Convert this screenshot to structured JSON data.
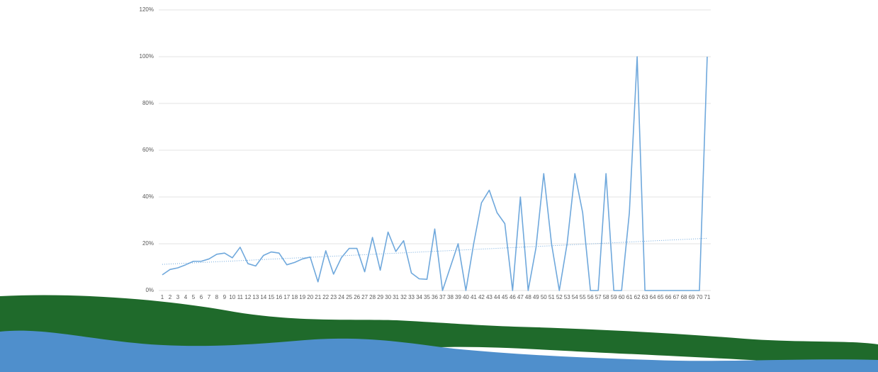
{
  "chart_data": {
    "type": "line",
    "categories": [
      "1",
      "2",
      "3",
      "4",
      "5",
      "6",
      "7",
      "8",
      "9",
      "10",
      "11",
      "12",
      "13",
      "14",
      "15",
      "16",
      "17",
      "18",
      "19",
      "20",
      "21",
      "22",
      "23",
      "24",
      "25",
      "26",
      "27",
      "28",
      "29",
      "30",
      "31",
      "32",
      "33",
      "34",
      "35",
      "36",
      "37",
      "38",
      "39",
      "40",
      "41",
      "42",
      "43",
      "44",
      "45",
      "46",
      "47",
      "48",
      "49",
      "50",
      "51",
      "52",
      "53",
      "54",
      "55",
      "56",
      "57",
      "58",
      "59",
      "60",
      "61",
      "62",
      "63",
      "64",
      "65",
      "66",
      "67",
      "68",
      "69",
      "70",
      "71"
    ],
    "series": [
      {
        "color": "#6fa8dc",
        "values": [
          6.7,
          9,
          9.7,
          11,
          12.5,
          12.5,
          13.5,
          15.5,
          16,
          14,
          18.5,
          11.5,
          10.5,
          15,
          16.5,
          16,
          11,
          12,
          13.5,
          14.3,
          3.7,
          17,
          7,
          14,
          18,
          18,
          8,
          22.7,
          8.7,
          25,
          16.7,
          21.3,
          7.5,
          5,
          4.8,
          26.3,
          0,
          10,
          20,
          0,
          20,
          37.5,
          42.9,
          33.3,
          28.6,
          0,
          40,
          0,
          18.2,
          50,
          20,
          0,
          20,
          50,
          33.3,
          0,
          0,
          50,
          0,
          0,
          33.3,
          100,
          0,
          0,
          0,
          0,
          0,
          0,
          0,
          0,
          100
        ]
      }
    ],
    "trendline": true,
    "ylim": [
      0,
      120
    ],
    "yticks": [
      {
        "value": 0,
        "label": "0%"
      },
      {
        "value": 20,
        "label": "20%"
      },
      {
        "value": 40,
        "label": "40%"
      },
      {
        "value": 60,
        "label": "60%"
      },
      {
        "value": 80,
        "label": "80%"
      },
      {
        "value": 100,
        "label": "100%"
      },
      {
        "value": 120,
        "label": "120%"
      }
    ],
    "grid": true
  }
}
